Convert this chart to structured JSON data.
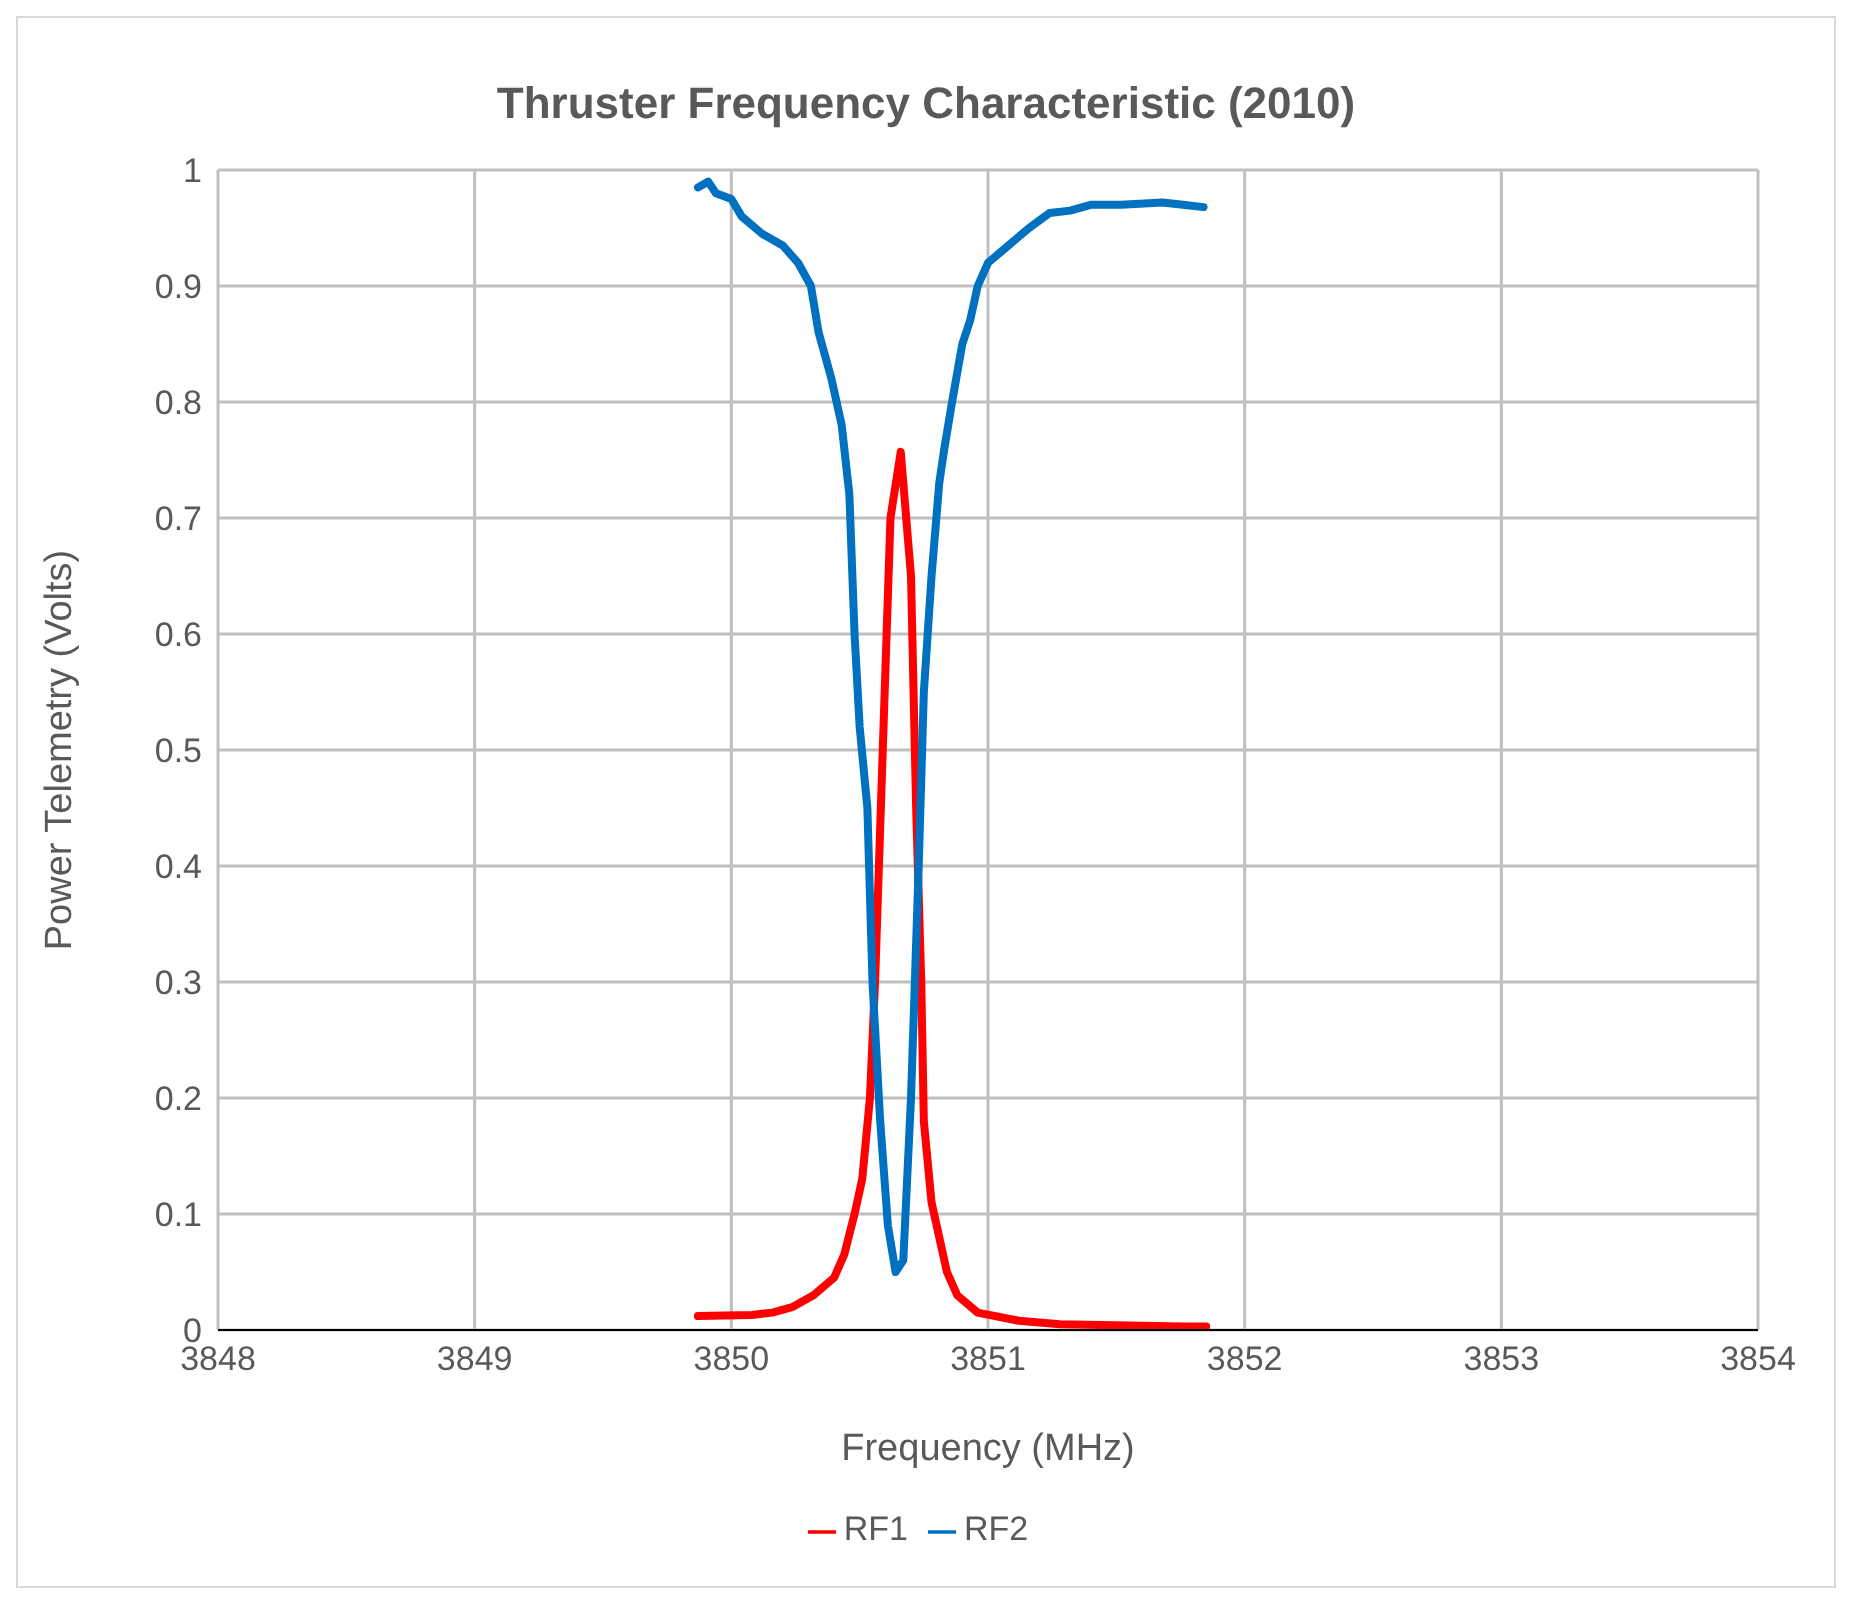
{
  "chart_data": {
    "type": "line",
    "title": "Thruster Frequency Characteristic (2010)",
    "xlabel": "Frequency (MHz)",
    "ylabel": "Power Telemetry (Volts)",
    "xlim": [
      3848,
      3854
    ],
    "xticks": [
      3848,
      3849,
      3850,
      3851,
      3852,
      3853,
      3854
    ],
    "ylim": [
      0,
      1
    ],
    "yticks": [
      0,
      0.1,
      0.2,
      0.3,
      0.4,
      0.5,
      0.6,
      0.7,
      0.8,
      0.9,
      1
    ],
    "grid": true,
    "legend": "bottom",
    "marker": "none",
    "line_style": "solid",
    "series": [
      {
        "name": "RF1",
        "color": "#ff0000",
        "x": [
          3849.87,
          3850.08,
          3850.16,
          3850.24,
          3850.32,
          3850.4,
          3850.44,
          3850.48,
          3850.51,
          3850.54,
          3850.56,
          3850.59,
          3850.62,
          3850.66,
          3850.7,
          3850.72,
          3850.74,
          3850.75,
          3850.78,
          3850.8,
          3850.84,
          3850.88,
          3850.96,
          3851.12,
          3851.28,
          3851.76,
          3851.85
        ],
        "values": [
          0.012,
          0.013,
          0.015,
          0.02,
          0.03,
          0.045,
          0.065,
          0.1,
          0.13,
          0.2,
          0.3,
          0.5,
          0.7,
          0.757,
          0.65,
          0.45,
          0.3,
          0.18,
          0.11,
          0.09,
          0.05,
          0.03,
          0.015,
          0.008,
          0.005,
          0.003,
          0.003
        ]
      },
      {
        "name": "RF2",
        "color": "#0070c0",
        "x": [
          3849.87,
          3849.91,
          3849.94,
          3850.0,
          3850.04,
          3850.12,
          3850.2,
          3850.26,
          3850.31,
          3850.34,
          3850.39,
          3850.43,
          3850.46,
          3850.48,
          3850.5,
          3850.53,
          3850.55,
          3850.58,
          3850.61,
          3850.64,
          3850.67,
          3850.7,
          3850.73,
          3850.75,
          3850.78,
          3850.81,
          3850.83,
          3850.86,
          3850.9,
          3850.93,
          3850.96,
          3851.0,
          3851.08,
          3851.16,
          3851.24,
          3851.32,
          3851.4,
          3851.52,
          3851.68,
          3851.76,
          3851.84
        ],
        "values": [
          0.985,
          0.99,
          0.98,
          0.975,
          0.96,
          0.945,
          0.935,
          0.92,
          0.9,
          0.86,
          0.82,
          0.78,
          0.72,
          0.6,
          0.52,
          0.45,
          0.3,
          0.18,
          0.09,
          0.05,
          0.06,
          0.2,
          0.4,
          0.55,
          0.65,
          0.73,
          0.76,
          0.8,
          0.85,
          0.87,
          0.9,
          0.92,
          0.935,
          0.95,
          0.963,
          0.965,
          0.97,
          0.97,
          0.972,
          0.97,
          0.968
        ]
      }
    ]
  }
}
